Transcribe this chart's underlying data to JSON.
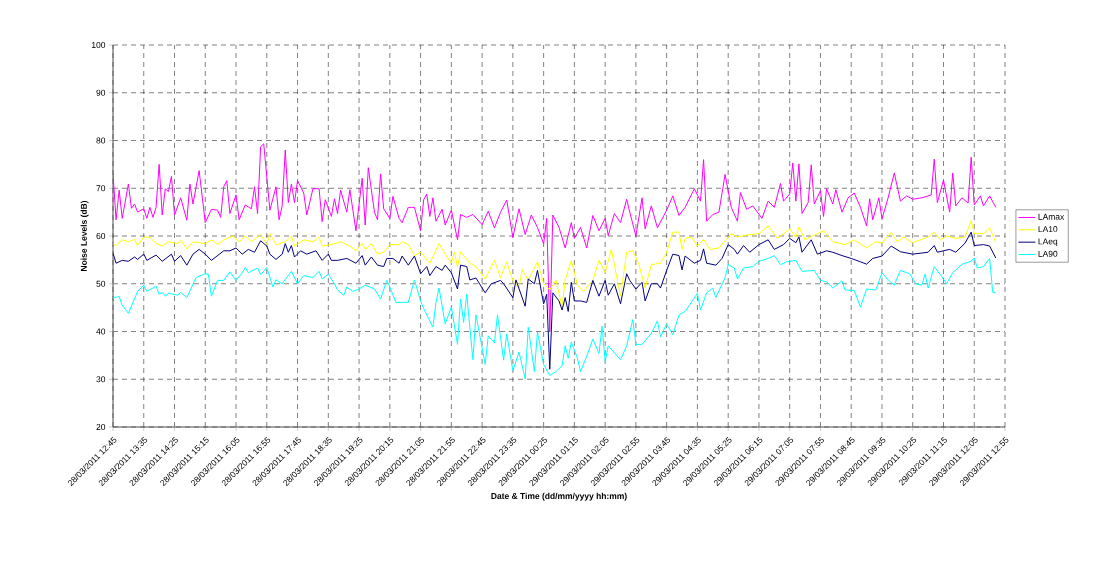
{
  "chart_data": {
    "type": "line",
    "xlabel": "Date & Time (dd/mm/yyyy hh:mm)",
    "ylabel": "Noise Levels (dB)",
    "xlim": [
      "2011-03-28T12:45",
      "2011-03-29T12:55"
    ],
    "xticks": [
      {
        "value": "2011-03-28T12:45",
        "label": "28/03/2011 12:45"
      },
      {
        "value": "2011-03-28T13:35",
        "label": "28/03/2011 13:35"
      },
      {
        "value": "2011-03-28T14:25",
        "label": "28/03/2011 14:25"
      },
      {
        "value": "2011-03-28T15:15",
        "label": "28/03/2011 15:15"
      },
      {
        "value": "2011-03-28T16:05",
        "label": "28/03/2011 16:05"
      },
      {
        "value": "2011-03-28T16:55",
        "label": "28/03/2011 16:55"
      },
      {
        "value": "2011-03-28T17:45",
        "label": "28/03/2011 17:45"
      },
      {
        "value": "2011-03-28T18:35",
        "label": "28/03/2011 18:35"
      },
      {
        "value": "2011-03-28T19:25",
        "label": "28/03/2011 19:25"
      },
      {
        "value": "2011-03-28T20:15",
        "label": "28/03/2011 20:15"
      },
      {
        "value": "2011-03-28T21:05",
        "label": "28/03/2011 21:05"
      },
      {
        "value": "2011-03-28T21:55",
        "label": "28/03/2011 21:55"
      },
      {
        "value": "2011-03-28T22:45",
        "label": "28/03/2011 22:45"
      },
      {
        "value": "2011-03-28T23:35",
        "label": "28/03/2011 23:35"
      },
      {
        "value": "2011-03-29T00:25",
        "label": "29/03/2011 00:25"
      },
      {
        "value": "2011-03-29T01:15",
        "label": "29/03/2011 01:15"
      },
      {
        "value": "2011-03-29T02:05",
        "label": "29/03/2011 02:05"
      },
      {
        "value": "2011-03-29T02:55",
        "label": "29/03/2011 02:55"
      },
      {
        "value": "2011-03-29T03:45",
        "label": "29/03/2011 03:45"
      },
      {
        "value": "2011-03-29T04:35",
        "label": "29/03/2011 04:35"
      },
      {
        "value": "2011-03-29T05:25",
        "label": "29/03/2011 05:25"
      },
      {
        "value": "2011-03-29T06:15",
        "label": "29/03/2011 06:15"
      },
      {
        "value": "2011-03-29T07:05",
        "label": "29/03/2011 07:05"
      },
      {
        "value": "2011-03-29T07:55",
        "label": "29/03/2011 07:55"
      },
      {
        "value": "2011-03-29T08:45",
        "label": "29/03/2011 08:45"
      },
      {
        "value": "2011-03-29T09:35",
        "label": "29/03/2011 09:35"
      },
      {
        "value": "2011-03-29T10:25",
        "label": "29/03/2011 10:25"
      },
      {
        "value": "2011-03-29T11:15",
        "label": "29/03/2011 11:15"
      },
      {
        "value": "2011-03-29T12:05",
        "label": "29/03/2011 12:05"
      },
      {
        "value": "2011-03-29T12:55",
        "label": "29/03/2011 12:55"
      }
    ],
    "ylim": [
      20,
      100
    ],
    "yticks": [
      20,
      30,
      40,
      50,
      60,
      70,
      80,
      90,
      100
    ],
    "grid": true,
    "legend": "right",
    "marker": "none",
    "line_style": "solid",
    "series": [
      {
        "name": "LAmax",
        "color": "#ff00ff",
        "x": [
          "2011-03-28T12:45",
          "2011-03-28T12:50",
          "2011-03-28T12:55",
          "2011-03-28T13:00",
          "2011-03-28T13:10",
          "2011-03-28T13:15",
          "2011-03-28T13:20",
          "2011-03-28T13:25",
          "2011-03-28T13:35",
          "2011-03-28T13:40",
          "2011-03-28T13:45",
          "2011-03-28T13:50",
          "2011-03-28T13:55",
          "2011-03-28T14:00",
          "2011-03-28T14:05",
          "2011-03-28T14:10",
          "2011-03-28T14:15",
          "2011-03-28T14:20",
          "2011-03-28T14:25",
          "2011-03-28T14:35",
          "2011-03-28T14:45",
          "2011-03-28T14:50",
          "2011-03-28T14:55",
          "2011-03-28T15:05",
          "2011-03-28T15:15",
          "2011-03-28T15:25",
          "2011-03-28T15:35",
          "2011-03-28T15:40",
          "2011-03-28T15:45",
          "2011-03-28T15:50",
          "2011-03-28T15:55",
          "2011-03-28T16:05",
          "2011-03-28T16:10",
          "2011-03-28T16:20",
          "2011-03-28T16:30",
          "2011-03-28T16:35",
          "2011-03-28T16:40",
          "2011-03-28T16:45",
          "2011-03-28T16:50",
          "2011-03-28T17:00",
          "2011-03-28T17:10",
          "2011-03-28T17:15",
          "2011-03-28T17:20",
          "2011-03-28T17:25",
          "2011-03-28T17:30",
          "2011-03-28T17:35",
          "2011-03-28T17:40",
          "2011-03-28T17:45",
          "2011-03-28T17:55",
          "2011-03-28T18:00",
          "2011-03-28T18:10",
          "2011-03-28T18:20",
          "2011-03-28T18:25",
          "2011-03-28T18:30",
          "2011-03-28T18:40",
          "2011-03-28T18:45",
          "2011-03-28T18:50",
          "2011-03-28T18:55",
          "2011-03-28T19:05",
          "2011-03-28T19:10",
          "2011-03-28T19:20",
          "2011-03-28T19:30",
          "2011-03-28T19:35",
          "2011-03-28T19:40",
          "2011-03-28T19:50",
          "2011-03-28T19:55",
          "2011-03-28T20:00",
          "2011-03-28T20:05",
          "2011-03-28T20:15",
          "2011-03-28T20:20",
          "2011-03-28T20:30",
          "2011-03-28T20:35",
          "2011-03-28T20:45",
          "2011-03-28T20:55",
          "2011-03-28T21:05",
          "2011-03-28T21:10",
          "2011-03-28T21:15",
          "2011-03-28T21:20",
          "2011-03-28T21:25",
          "2011-03-28T21:30",
          "2011-03-28T21:40",
          "2011-03-28T21:45",
          "2011-03-28T21:55",
          "2011-03-28T22:05",
          "2011-03-28T22:10",
          "2011-03-28T22:20",
          "2011-03-28T22:30",
          "2011-03-28T22:45",
          "2011-03-28T22:55",
          "2011-03-28T23:05",
          "2011-03-28T23:15",
          "2011-03-28T23:25",
          "2011-03-28T23:35",
          "2011-03-28T23:45",
          "2011-03-28T23:55",
          "2011-03-29T00:05",
          "2011-03-29T00:15",
          "2011-03-29T00:25",
          "2011-03-29T00:30",
          "2011-03-29T00:35",
          "2011-03-29T00:40",
          "2011-03-29T00:50",
          "2011-03-29T01:00",
          "2011-03-29T01:10",
          "2011-03-29T01:15",
          "2011-03-29T01:25",
          "2011-03-29T01:35",
          "2011-03-29T01:45",
          "2011-03-29T01:55",
          "2011-03-29T02:05",
          "2011-03-29T02:10",
          "2011-03-29T02:20",
          "2011-03-29T02:30",
          "2011-03-29T02:40",
          "2011-03-29T02:45",
          "2011-03-29T02:55",
          "2011-03-29T03:05",
          "2011-03-29T03:10",
          "2011-03-29T03:20",
          "2011-03-29T03:30",
          "2011-03-29T03:45",
          "2011-03-29T03:55",
          "2011-03-29T04:05",
          "2011-03-29T04:15",
          "2011-03-29T04:30",
          "2011-03-29T04:40",
          "2011-03-29T04:45",
          "2011-03-29T04:50",
          "2011-03-29T05:00",
          "2011-03-29T05:10",
          "2011-03-29T05:20",
          "2011-03-29T05:30",
          "2011-03-29T05:40",
          "2011-03-29T05:45",
          "2011-03-29T05:55",
          "2011-03-29T06:05",
          "2011-03-29T06:20",
          "2011-03-29T06:30",
          "2011-03-29T06:40",
          "2011-03-29T06:50",
          "2011-03-29T06:55",
          "2011-03-29T07:05",
          "2011-03-29T07:10",
          "2011-03-29T07:15",
          "2011-03-29T07:20",
          "2011-03-29T07:25",
          "2011-03-29T07:35",
          "2011-03-29T07:40",
          "2011-03-29T07:45",
          "2011-03-29T07:55",
          "2011-03-29T08:00",
          "2011-03-29T08:05",
          "2011-03-29T08:15",
          "2011-03-29T08:20",
          "2011-03-29T08:30",
          "2011-03-29T08:40",
          "2011-03-29T08:50",
          "2011-03-29T09:00",
          "2011-03-29T09:10",
          "2011-03-29T09:15",
          "2011-03-29T09:20",
          "2011-03-29T09:30",
          "2011-03-29T09:35",
          "2011-03-29T09:45",
          "2011-03-29T09:55",
          "2011-03-29T10:05",
          "2011-03-29T10:15",
          "2011-03-29T10:25",
          "2011-03-29T10:40",
          "2011-03-29T10:55",
          "2011-03-29T11:00",
          "2011-03-29T11:05",
          "2011-03-29T11:15",
          "2011-03-29T11:25",
          "2011-03-29T11:30",
          "2011-03-29T11:35",
          "2011-03-29T11:45",
          "2011-03-29T11:55",
          "2011-03-29T12:00",
          "2011-03-29T12:05",
          "2011-03-29T12:15",
          "2011-03-29T12:20",
          "2011-03-29T12:30",
          "2011-03-29T12:40"
        ],
        "values": [
          73.2,
          63.4,
          69.6,
          63.7,
          70.9,
          65.8,
          66.7,
          65.0,
          65.7,
          63.7,
          66.0,
          63.9,
          66.0,
          75.0,
          64.4,
          69.9,
          69.3,
          72.5,
          64.4,
          68.0,
          63.3,
          70.9,
          66.7,
          73.7,
          62.8,
          65.6,
          65.4,
          63.9,
          70.3,
          71.6,
          64.7,
          68.6,
          63.4,
          66.5,
          65.7,
          70.3,
          64.7,
          78.7,
          79.3,
          65.4,
          70.3,
          63.4,
          66.3,
          78.0,
          67.0,
          70.9,
          67.0,
          71.6,
          69.0,
          64.4,
          69.9,
          69.9,
          63.0,
          67.6,
          64.1,
          67.8,
          64.7,
          69.6,
          65.0,
          69.7,
          61.1,
          72.1,
          62.3,
          74.3,
          65.0,
          63.4,
          73.0,
          65.7,
          63.7,
          68.3,
          63.7,
          62.8,
          66.0,
          66.0,
          61.1,
          67.6,
          68.8,
          64.1,
          68.0,
          63.1,
          65.6,
          62.3,
          65.4,
          59.2,
          64.5,
          63.9,
          64.5,
          62.4,
          65.2,
          61.7,
          65.0,
          67.5,
          59.7,
          65.7,
          60.3,
          64.4,
          61.8,
          58.4,
          63.7,
          40.0,
          64.4,
          61.8,
          57.5,
          62.8,
          59.5,
          61.8,
          57.5,
          64.3,
          61.1,
          63.7,
          60.1,
          64.7,
          62.8,
          67.7,
          65.0,
          60.0,
          68.0,
          61.5,
          66.3,
          61.7,
          65.4,
          68.4,
          64.3,
          66.0,
          69.9,
          67.3,
          76.0,
          63.1,
          64.5,
          65.0,
          72.9,
          66.0,
          63.1,
          69.1,
          65.6,
          66.3,
          63.7,
          67.3,
          66.0,
          71.0,
          67.3,
          68.8,
          75.3,
          67.3,
          75.1,
          64.7,
          67.0,
          74.9,
          66.7,
          69.5,
          64.1,
          69.9,
          66.7,
          69.7,
          65.0,
          68.0,
          69.0,
          66.0,
          62.1,
          67.8,
          63.4,
          68.0,
          63.6,
          68.0,
          73.2,
          67.3,
          68.4,
          67.7,
          68.0,
          68.6,
          76.1,
          67.0,
          71.7,
          65.0,
          73.2,
          66.3,
          68.0,
          66.9,
          76.5,
          66.5,
          68.4,
          66.3,
          68.4,
          66.0
        ]
      },
      {
        "name": "LA10",
        "color": "#ffff00",
        "x": [
          "2011-03-28T12:45",
          "2011-03-28T12:50",
          "2011-03-28T13:00",
          "2011-03-28T13:10",
          "2011-03-28T13:20",
          "2011-03-28T13:25",
          "2011-03-28T13:35",
          "2011-03-28T13:45",
          "2011-03-28T13:55",
          "2011-03-28T14:05",
          "2011-03-28T14:15",
          "2011-03-28T14:30",
          "2011-03-28T14:35",
          "2011-03-28T14:45",
          "2011-03-28T14:55",
          "2011-03-28T15:15",
          "2011-03-28T15:25",
          "2011-03-28T15:35",
          "2011-03-28T15:45",
          "2011-03-28T16:00",
          "2011-03-28T16:10",
          "2011-03-28T16:20",
          "2011-03-28T16:30",
          "2011-03-28T16:45",
          "2011-03-28T16:55",
          "2011-03-28T17:00",
          "2011-03-28T17:10",
          "2011-03-28T17:25",
          "2011-03-28T17:35",
          "2011-03-28T17:40",
          "2011-03-28T17:55",
          "2011-03-28T18:10",
          "2011-03-28T18:20",
          "2011-03-28T18:25",
          "2011-03-28T18:40",
          "2011-03-28T18:55",
          "2011-03-28T19:10",
          "2011-03-28T19:20",
          "2011-03-28T19:30",
          "2011-03-28T19:35",
          "2011-03-28T19:45",
          "2011-03-28T19:55",
          "2011-03-28T20:05",
          "2011-03-28T20:15",
          "2011-03-28T20:30",
          "2011-03-28T20:35",
          "2011-03-28T20:45",
          "2011-03-28T20:55",
          "2011-03-28T21:05",
          "2011-03-28T21:20",
          "2011-03-28T21:35",
          "2011-03-28T21:45",
          "2011-03-28T21:55",
          "2011-03-28T22:00",
          "2011-03-28T22:05",
          "2011-03-28T22:10",
          "2011-03-28T22:25",
          "2011-03-28T22:35",
          "2011-03-28T22:50",
          "2011-03-28T23:05",
          "2011-03-28T23:15",
          "2011-03-28T23:25",
          "2011-03-28T23:35",
          "2011-03-28T23:45",
          "2011-03-28T23:50",
          "2011-03-29T00:00",
          "2011-03-29T00:15",
          "2011-03-29T00:25",
          "2011-03-29T00:35",
          "2011-03-29T00:45",
          "2011-03-29T00:55",
          "2011-03-29T01:00",
          "2011-03-29T01:10",
          "2011-03-29T01:20",
          "2011-03-29T01:30",
          "2011-03-29T01:45",
          "2011-03-29T01:55",
          "2011-03-29T02:05",
          "2011-03-29T02:15",
          "2011-03-29T02:30",
          "2011-03-29T02:40",
          "2011-03-29T02:50",
          "2011-03-29T03:00",
          "2011-03-29T03:10",
          "2011-03-29T03:20",
          "2011-03-29T03:35",
          "2011-03-29T03:45",
          "2011-03-29T03:55",
          "2011-03-29T04:05",
          "2011-03-29T04:10",
          "2011-03-29T04:15",
          "2011-03-29T04:25",
          "2011-03-29T04:35",
          "2011-03-29T04:45",
          "2011-03-29T04:55",
          "2011-03-29T05:10",
          "2011-03-29T05:30",
          "2011-03-29T05:40",
          "2011-03-29T05:55",
          "2011-03-29T06:15",
          "2011-03-29T06:30",
          "2011-03-29T06:45",
          "2011-03-29T07:05",
          "2011-03-29T07:15",
          "2011-03-29T07:20",
          "2011-03-29T07:30",
          "2011-03-29T07:45",
          "2011-03-29T08:00",
          "2011-03-29T08:15",
          "2011-03-29T08:35",
          "2011-03-29T08:50",
          "2011-03-29T09:10",
          "2011-03-29T09:25",
          "2011-03-29T09:35",
          "2011-03-29T09:50",
          "2011-03-29T10:00",
          "2011-03-29T10:10",
          "2011-03-29T10:25",
          "2011-03-29T10:50",
          "2011-03-29T11:00",
          "2011-03-29T11:10",
          "2011-03-29T11:20",
          "2011-03-29T11:35",
          "2011-03-29T11:50",
          "2011-03-29T12:00",
          "2011-03-29T12:05",
          "2011-03-29T12:20",
          "2011-03-29T12:30",
          "2011-03-29T12:40"
        ],
        "values": [
          58.4,
          58.0,
          59.2,
          58.8,
          59.3,
          58.0,
          59.8,
          59.7,
          58.5,
          57.9,
          58.8,
          58.4,
          59.2,
          57.3,
          58.8,
          58.4,
          59.2,
          58.2,
          59.2,
          60.0,
          58.8,
          60.0,
          58.8,
          60.3,
          58.2,
          60.5,
          58.2,
          58.8,
          60.0,
          57.9,
          59.2,
          58.8,
          59.8,
          57.9,
          58.2,
          58.8,
          57.9,
          56.9,
          58.5,
          57.2,
          58.4,
          56.2,
          56.6,
          58.2,
          58.2,
          58.8,
          58.2,
          55.9,
          56.6,
          54.3,
          58.4,
          56.2,
          54.3,
          56.6,
          53.6,
          56.7,
          54.3,
          53.6,
          51.0,
          54.9,
          51.3,
          54.6,
          50.7,
          49.1,
          53.0,
          50.7,
          54.6,
          50.0,
          48.7,
          50.8,
          45.1,
          50.8,
          54.9,
          49.7,
          48.4,
          50.7,
          54.9,
          52.3,
          57.2,
          47.4,
          56.6,
          56.9,
          54.0,
          49.1,
          54.0,
          54.3,
          56.6,
          60.8,
          60.8,
          57.2,
          59.5,
          59.8,
          57.9,
          59.3,
          57.2,
          57.5,
          60.5,
          59.8,
          60.2,
          60.5,
          62.1,
          59.5,
          61.5,
          59.7,
          61.9,
          59.2,
          60.2,
          61.1,
          58.8,
          58.2,
          59.2,
          57.5,
          58.8,
          58.5,
          60.8,
          58.8,
          59.8,
          58.6,
          59.8,
          60.8,
          59.2,
          60.0,
          59.5,
          59.8,
          63.2,
          60.5,
          60.5,
          61.7,
          58.6
        ]
      },
      {
        "name": "LAeq",
        "color": "#000080",
        "x": [
          "2011-03-28T12:45",
          "2011-03-28T12:50",
          "2011-03-28T13:00",
          "2011-03-28T13:10",
          "2011-03-28T13:20",
          "2011-03-28T13:25",
          "2011-03-28T13:35",
          "2011-03-28T13:40",
          "2011-03-28T13:55",
          "2011-03-28T14:05",
          "2011-03-28T14:20",
          "2011-03-28T14:25",
          "2011-03-28T14:35",
          "2011-03-28T14:45",
          "2011-03-28T14:55",
          "2011-03-28T15:05",
          "2011-03-28T15:15",
          "2011-03-28T15:25",
          "2011-03-28T15:45",
          "2011-03-28T15:55",
          "2011-03-28T16:05",
          "2011-03-28T16:15",
          "2011-03-28T16:25",
          "2011-03-28T16:35",
          "2011-03-28T16:45",
          "2011-03-28T16:55",
          "2011-03-28T17:00",
          "2011-03-28T17:10",
          "2011-03-28T17:20",
          "2011-03-28T17:25",
          "2011-03-28T17:30",
          "2011-03-28T17:35",
          "2011-03-28T17:40",
          "2011-03-28T17:50",
          "2011-03-28T18:00",
          "2011-03-28T18:15",
          "2011-03-28T18:25",
          "2011-03-28T18:35",
          "2011-03-28T18:40",
          "2011-03-28T18:50",
          "2011-03-28T19:05",
          "2011-03-28T19:20",
          "2011-03-28T19:30",
          "2011-03-28T19:35",
          "2011-03-28T19:45",
          "2011-03-28T19:55",
          "2011-03-28T20:05",
          "2011-03-28T20:10",
          "2011-03-28T20:20",
          "2011-03-28T20:30",
          "2011-03-28T20:35",
          "2011-03-28T20:45",
          "2011-03-28T20:55",
          "2011-03-28T21:05",
          "2011-03-28T21:15",
          "2011-03-28T21:20",
          "2011-03-28T21:30",
          "2011-03-28T21:40",
          "2011-03-28T21:45",
          "2011-03-28T21:55",
          "2011-03-28T22:05",
          "2011-03-28T22:10",
          "2011-03-28T22:20",
          "2011-03-28T22:25",
          "2011-03-28T22:35",
          "2011-03-28T22:50",
          "2011-03-28T23:00",
          "2011-03-28T23:15",
          "2011-03-28T23:20",
          "2011-03-28T23:35",
          "2011-03-28T23:40",
          "2011-03-28T23:55",
          "2011-03-29T00:00",
          "2011-03-29T00:10",
          "2011-03-29T00:15",
          "2011-03-29T00:25",
          "2011-03-29T00:30",
          "2011-03-29T00:35",
          "2011-03-29T00:40",
          "2011-03-29T00:50",
          "2011-03-29T00:55",
          "2011-03-29T01:00",
          "2011-03-29T01:05",
          "2011-03-29T01:10",
          "2011-03-29T01:15",
          "2011-03-29T01:25",
          "2011-03-29T01:35",
          "2011-03-29T01:45",
          "2011-03-29T01:55",
          "2011-03-29T02:05",
          "2011-03-29T02:10",
          "2011-03-29T02:20",
          "2011-03-29T02:30",
          "2011-03-29T02:40",
          "2011-03-29T02:45",
          "2011-03-29T02:55",
          "2011-03-29T03:05",
          "2011-03-29T03:10",
          "2011-03-29T03:20",
          "2011-03-29T03:30",
          "2011-03-29T03:35",
          "2011-03-29T03:45",
          "2011-03-29T03:55",
          "2011-03-29T04:05",
          "2011-03-29T04:10",
          "2011-03-29T04:15",
          "2011-03-29T04:30",
          "2011-03-29T04:40",
          "2011-03-29T04:45",
          "2011-03-29T04:50",
          "2011-03-29T05:05",
          "2011-03-29T05:15",
          "2011-03-29T05:25",
          "2011-03-29T05:35",
          "2011-03-29T05:40",
          "2011-03-29T05:50",
          "2011-03-29T06:00",
          "2011-03-29T06:15",
          "2011-03-29T06:30",
          "2011-03-29T06:40",
          "2011-03-29T06:55",
          "2011-03-29T07:05",
          "2011-03-29T07:15",
          "2011-03-29T07:20",
          "2011-03-29T07:25",
          "2011-03-29T07:40",
          "2011-03-29T07:50",
          "2011-03-29T08:05",
          "2011-03-29T08:15",
          "2011-03-29T08:30",
          "2011-03-29T08:45",
          "2011-03-29T09:00",
          "2011-03-29T09:10",
          "2011-03-29T09:20",
          "2011-03-29T09:35",
          "2011-03-29T09:50",
          "2011-03-29T10:05",
          "2011-03-29T10:25",
          "2011-03-29T10:50",
          "2011-03-29T11:00",
          "2011-03-29T11:05",
          "2011-03-29T11:25",
          "2011-03-29T11:35",
          "2011-03-29T11:50",
          "2011-03-29T12:00",
          "2011-03-29T12:05",
          "2011-03-29T12:20",
          "2011-03-29T12:30",
          "2011-03-29T12:40"
        ],
        "values": [
          56.4,
          54.3,
          54.9,
          54.7,
          55.6,
          55.1,
          56.2,
          54.9,
          56.0,
          54.7,
          56.2,
          54.7,
          55.9,
          53.9,
          56.2,
          57.2,
          56.2,
          54.9,
          56.9,
          56.9,
          57.5,
          56.2,
          57.2,
          56.6,
          59.0,
          57.9,
          56.2,
          55.1,
          56.2,
          58.4,
          56.6,
          58.0,
          55.6,
          56.9,
          56.2,
          56.9,
          54.9,
          56.2,
          54.9,
          54.9,
          55.3,
          54.3,
          55.9,
          53.9,
          55.6,
          53.9,
          53.6,
          55.3,
          55.3,
          54.3,
          55.8,
          53.9,
          55.8,
          52.1,
          53.6,
          51.7,
          53.6,
          52.8,
          53.9,
          52.3,
          48.9,
          53.9,
          53.6,
          50.8,
          51.2,
          48.1,
          50.0,
          50.7,
          50.0,
          47.1,
          50.8,
          45.3,
          51.0,
          50.0,
          52.8,
          45.8,
          47.8,
          32.1,
          48.1,
          46.4,
          44.5,
          47.1,
          44.2,
          50.3,
          46.4,
          46.4,
          46.1,
          50.7,
          47.4,
          50.7,
          47.6,
          50.0,
          45.8,
          52.1,
          50.7,
          48.9,
          50.3,
          46.4,
          50.0,
          50.0,
          49.1,
          52.8,
          56.2,
          55.9,
          52.9,
          55.8,
          54.3,
          54.9,
          57.3,
          54.3,
          53.9,
          55.3,
          58.2,
          57.2,
          56.2,
          58.0,
          56.6,
          58.2,
          59.2,
          57.2,
          58.2,
          59.5,
          58.6,
          59.8,
          56.6,
          59.2,
          56.2,
          56.9,
          56.6,
          55.9,
          55.3,
          54.6,
          54.1,
          55.3,
          55.8,
          57.9,
          56.7,
          56.2,
          56.6,
          58.0,
          56.6,
          57.2,
          56.6,
          58.5,
          60.8,
          58.0,
          58.2,
          57.9,
          55.4
        ]
      },
      {
        "name": "LA90",
        "color": "#00ffff",
        "x": [
          "2011-03-28T12:45",
          "2011-03-28T12:55",
          "2011-03-28T13:00",
          "2011-03-28T13:10",
          "2011-03-28T13:25",
          "2011-03-28T13:35",
          "2011-03-28T13:40",
          "2011-03-28T13:55",
          "2011-03-28T14:00",
          "2011-03-28T14:05",
          "2011-03-28T14:10",
          "2011-03-28T14:15",
          "2011-03-28T14:30",
          "2011-03-28T14:35",
          "2011-03-28T14:45",
          "2011-03-28T15:00",
          "2011-03-28T15:15",
          "2011-03-28T15:20",
          "2011-03-28T15:25",
          "2011-03-28T15:35",
          "2011-03-28T15:45",
          "2011-03-28T15:55",
          "2011-03-28T16:05",
          "2011-03-28T16:15",
          "2011-03-28T16:20",
          "2011-03-28T16:25",
          "2011-03-28T16:40",
          "2011-03-28T16:45",
          "2011-03-28T16:55",
          "2011-03-28T17:05",
          "2011-03-28T17:10",
          "2011-03-28T17:20",
          "2011-03-28T17:35",
          "2011-03-28T17:45",
          "2011-03-28T17:55",
          "2011-03-28T18:10",
          "2011-03-28T18:20",
          "2011-03-28T18:25",
          "2011-03-28T18:35",
          "2011-03-28T18:45",
          "2011-03-28T18:50",
          "2011-03-28T19:00",
          "2011-03-28T19:05",
          "2011-03-28T19:15",
          "2011-03-28T19:25",
          "2011-03-28T19:35",
          "2011-03-28T19:50",
          "2011-03-28T20:00",
          "2011-03-28T20:10",
          "2011-03-28T20:15",
          "2011-03-28T20:25",
          "2011-03-28T20:35",
          "2011-03-28T20:45",
          "2011-03-28T20:55",
          "2011-03-28T21:05",
          "2011-03-28T21:10",
          "2011-03-28T21:25",
          "2011-03-28T21:30",
          "2011-03-28T21:35",
          "2011-03-28T21:45",
          "2011-03-28T21:55",
          "2011-03-28T22:05",
          "2011-03-28T22:10",
          "2011-03-28T22:15",
          "2011-03-28T22:20",
          "2011-03-28T22:30",
          "2011-03-28T22:35",
          "2011-03-28T22:50",
          "2011-03-28T22:55",
          "2011-03-28T23:05",
          "2011-03-28T23:10",
          "2011-03-28T23:20",
          "2011-03-28T23:25",
          "2011-03-28T23:35",
          "2011-03-28T23:45",
          "2011-03-28T23:55",
          "2011-03-29T00:00",
          "2011-03-29T00:10",
          "2011-03-29T00:15",
          "2011-03-29T00:25",
          "2011-03-29T00:35",
          "2011-03-29T00:45",
          "2011-03-29T00:55",
          "2011-03-29T01:00",
          "2011-03-29T01:05",
          "2011-03-29T01:10",
          "2011-03-29T01:20",
          "2011-03-29T01:25",
          "2011-03-29T01:35",
          "2011-03-29T01:45",
          "2011-03-29T01:55",
          "2011-03-29T02:00",
          "2011-03-29T02:05",
          "2011-03-29T02:10",
          "2011-03-29T02:30",
          "2011-03-29T02:40",
          "2011-03-29T02:50",
          "2011-03-29T02:55",
          "2011-03-29T03:05",
          "2011-03-29T03:20",
          "2011-03-29T03:30",
          "2011-03-29T03:35",
          "2011-03-29T03:45",
          "2011-03-29T03:55",
          "2011-03-29T04:05",
          "2011-03-29T04:15",
          "2011-03-29T04:25",
          "2011-03-29T04:35",
          "2011-03-29T04:40",
          "2011-03-29T04:50",
          "2011-03-29T05:00",
          "2011-03-29T05:05",
          "2011-03-29T05:20",
          "2011-03-29T05:25",
          "2011-03-29T05:35",
          "2011-03-29T05:40",
          "2011-03-29T05:50",
          "2011-03-29T06:05",
          "2011-03-29T06:15",
          "2011-03-29T06:30",
          "2011-03-29T06:40",
          "2011-03-29T06:50",
          "2011-03-29T07:00",
          "2011-03-29T07:15",
          "2011-03-29T07:25",
          "2011-03-29T07:45",
          "2011-03-29T07:55",
          "2011-03-29T08:05",
          "2011-03-29T08:15",
          "2011-03-29T08:30",
          "2011-03-29T08:35",
          "2011-03-29T08:50",
          "2011-03-29T09:00",
          "2011-03-29T09:10",
          "2011-03-29T09:25",
          "2011-03-29T09:35",
          "2011-03-29T09:45",
          "2011-03-29T09:55",
          "2011-03-29T10:05",
          "2011-03-29T10:20",
          "2011-03-29T10:30",
          "2011-03-29T10:40",
          "2011-03-29T10:45",
          "2011-03-29T10:50",
          "2011-03-29T11:00",
          "2011-03-29T11:15",
          "2011-03-29T11:20",
          "2011-03-29T11:30",
          "2011-03-29T11:45",
          "2011-03-29T12:00",
          "2011-03-29T12:05",
          "2011-03-29T12:10",
          "2011-03-29T12:20",
          "2011-03-29T12:30",
          "2011-03-29T12:35",
          "2011-03-29T12:40"
        ],
        "values": [
          47.1,
          47.3,
          45.5,
          43.8,
          48.4,
          49.7,
          48.4,
          49.5,
          47.8,
          48.2,
          47.4,
          48.0,
          47.6,
          48.2,
          47.1,
          51.3,
          52.1,
          52.0,
          47.4,
          50.7,
          50.7,
          52.5,
          50.7,
          52.3,
          53.4,
          52.3,
          53.3,
          51.9,
          53.4,
          49.3,
          50.8,
          50.0,
          52.6,
          50.0,
          51.7,
          51.3,
          52.6,
          51.0,
          52.0,
          50.0,
          48.7,
          47.6,
          49.3,
          48.4,
          48.9,
          49.7,
          48.9,
          46.8,
          50.7,
          49.3,
          46.1,
          46.1,
          46.1,
          50.8,
          46.4,
          44.8,
          40.9,
          46.1,
          49.1,
          41.6,
          45.1,
          37.3,
          46.8,
          41.9,
          47.8,
          34.1,
          43.5,
          33.1,
          39.1,
          37.6,
          43.5,
          34.0,
          39.5,
          31.8,
          35.7,
          30.1,
          40.9,
          31.6,
          39.9,
          33.1,
          30.8,
          31.6,
          32.8,
          37.0,
          34.4,
          37.8,
          34.4,
          31.6,
          34.8,
          38.4,
          35.4,
          41.1,
          33.7,
          37.0,
          34.1,
          37.0,
          42.5,
          37.3,
          37.3,
          39.6,
          42.2,
          38.9,
          41.6,
          39.3,
          43.5,
          44.2,
          46.1,
          48.0,
          44.5,
          48.1,
          49.1,
          47.1,
          51.3,
          54.0,
          53.3,
          51.0,
          53.3,
          53.6,
          54.7,
          55.3,
          55.9,
          54.0,
          54.6,
          54.9,
          52.6,
          52.8,
          50.7,
          50.4,
          49.1,
          50.6,
          48.7,
          48.6,
          45.1,
          48.9,
          48.7,
          52.3,
          50.8,
          49.7,
          52.8,
          52.1,
          50.0,
          49.7,
          52.0,
          49.1,
          53.6,
          51.0,
          50.0,
          52.3,
          54.1,
          54.7,
          55.4,
          53.3,
          53.6,
          55.3,
          48.2,
          48.2
        ]
      }
    ]
  }
}
